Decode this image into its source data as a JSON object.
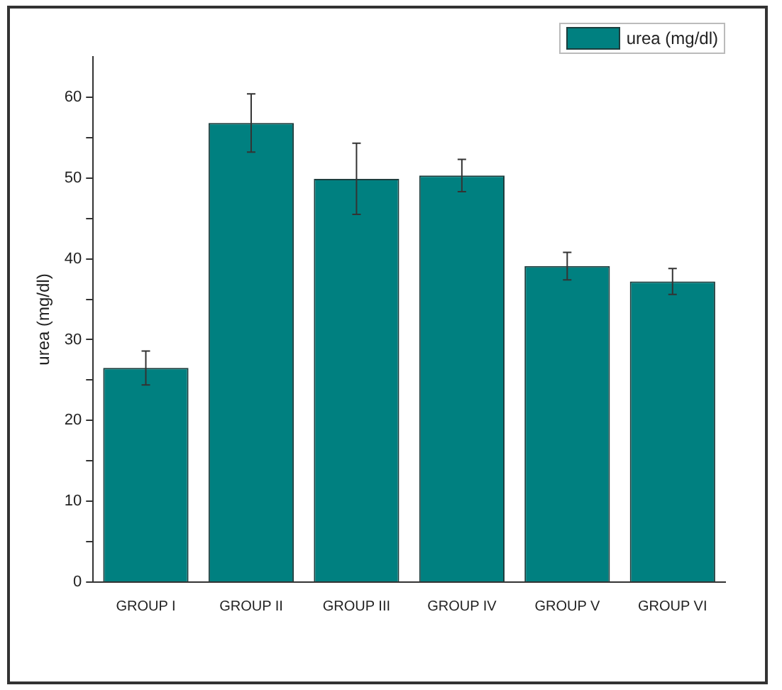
{
  "chart_data": {
    "type": "bar",
    "ylabel": "urea (mg/dl)",
    "categories": [
      "GROUP I",
      "GROUP II",
      "GROUP III",
      "GROUP IV",
      "GROUP V",
      "GROUP VI"
    ],
    "series": [
      {
        "name": "urea (mg/dl)",
        "color": "#008080",
        "values": [
          26.5,
          56.8,
          49.9,
          50.3,
          39.1,
          37.2
        ],
        "errors": [
          2.1,
          3.6,
          4.4,
          2.0,
          1.7,
          1.6
        ]
      }
    ],
    "ylim": [
      0,
      65
    ],
    "yticks": [
      0,
      {
        "value": 5,
        "label": null
      },
      10,
      {
        "value": 15,
        "label": null
      },
      20,
      {
        "value": 25,
        "label": null
      },
      30,
      {
        "value": 35,
        "label": null
      },
      40,
      {
        "value": 45,
        "label": null
      },
      50,
      {
        "value": 55,
        "label": null
      },
      60
    ],
    "grid": false,
    "legend": "top right"
  }
}
